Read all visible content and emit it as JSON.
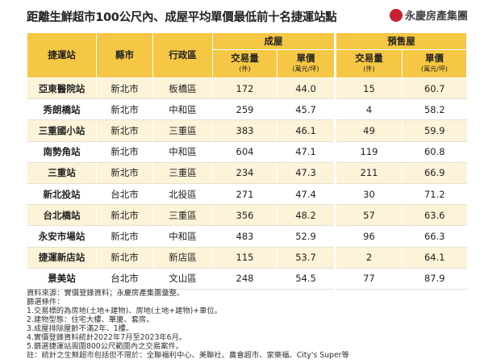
{
  "header": {
    "title": "距離生鮮超市100公尺內、成屋平均單價最低前十名捷運站點",
    "logo": "永慶房產集團"
  },
  "table": {
    "columns": [
      "捷運站",
      "縣市",
      "行政區"
    ],
    "groups": [
      "成屋",
      "預售屋"
    ],
    "subcolumns": [
      {
        "label": "交易量",
        "unit": "(件)"
      },
      {
        "label": "單價",
        "unit": "(萬元/坪)"
      },
      {
        "label": "交易量",
        "unit": "(件)"
      },
      {
        "label": "單價",
        "unit": "(萬元/坪)"
      }
    ],
    "rows": [
      [
        "亞東醫院站",
        "新北市",
        "板橋區",
        "172",
        "44.0",
        "15",
        "60.7"
      ],
      [
        "秀朗橋站",
        "新北市",
        "中和區",
        "259",
        "45.7",
        "4",
        "58.2"
      ],
      [
        "三重國小站",
        "新北市",
        "三重區",
        "383",
        "46.1",
        "49",
        "59.9"
      ],
      [
        "南勢角站",
        "新北市",
        "中和區",
        "604",
        "47.1",
        "119",
        "60.8"
      ],
      [
        "三重站",
        "新北市",
        "三重區",
        "234",
        "47.3",
        "211",
        "66.9"
      ],
      [
        "新北投站",
        "台北市",
        "北投區",
        "271",
        "47.4",
        "30",
        "71.2"
      ],
      [
        "台北橋站",
        "新北市",
        "三重區",
        "356",
        "48.2",
        "57",
        "63.6"
      ],
      [
        "永安市場站",
        "新北市",
        "中和區",
        "483",
        "52.9",
        "96",
        "66.3"
      ],
      [
        "捷運新店站",
        "新北市",
        "新店區",
        "115",
        "53.7",
        "2",
        "64.1"
      ],
      [
        "景美站",
        "台北市",
        "文山區",
        "248",
        "54.5",
        "77",
        "87.9"
      ]
    ]
  },
  "notes": [
    "資料來源：實價登錄資料；永慶房產集團彙整。",
    "篩選條件：",
    "1.交易標的為房地(土地+建物)、房地(土地+建物)+車位。",
    "2.建物型態：住宅大樓、華廈、套房。",
    "3.成屋排除屋齡不滿2年、1樓。",
    "4.實價登錄資料統計2022年7月至2023年6月。",
    "5.篩選捷運站周圍800公尺範圍內之交易案件。",
    "註：統計之生鮮超市包括但不限於：全聯福利中心、美聯社、農會超市、家樂福、City's Super等"
  ]
}
